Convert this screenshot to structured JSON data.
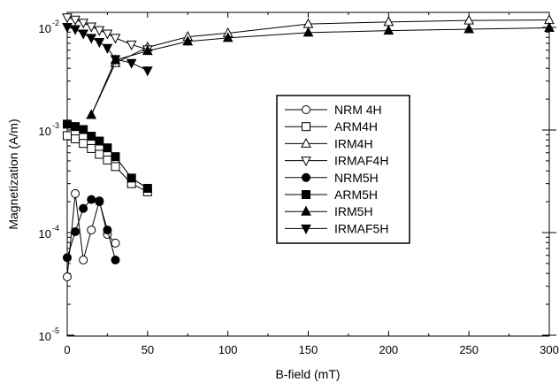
{
  "chart_data": {
    "type": "scatter",
    "title": "",
    "xlabel": "B-field (mT)",
    "ylabel": "Magnetization  (A/m)",
    "xlim": [
      0,
      300
    ],
    "ylim": [
      1e-05,
      0.01
    ],
    "y_scale": "log",
    "x_ticks": [
      0,
      50,
      100,
      150,
      200,
      250,
      300
    ],
    "y_ticks": [
      {
        "value": 0.01,
        "base": "10",
        "exp": "-2"
      },
      {
        "value": 0.001,
        "base": "10",
        "exp": "-3"
      },
      {
        "value": 0.0001,
        "base": "10",
        "exp": "-4"
      },
      {
        "value": 1e-05,
        "base": "10",
        "exp": "-5"
      }
    ],
    "grid": false,
    "legend_position": "center-right",
    "series": [
      {
        "name": "NRM 4H",
        "marker": "circle-open",
        "x": [
          0,
          5,
          10,
          15,
          20,
          25,
          30
        ],
        "y": [
          3.7e-05,
          0.00024,
          5.4e-05,
          0.000106,
          0.000204,
          9.6e-05,
          7.9e-05
        ]
      },
      {
        "name": "ARM4H",
        "marker": "square-open",
        "x": [
          0,
          5,
          10,
          15,
          20,
          25,
          30,
          40,
          50
        ],
        "y": [
          0.00088,
          0.00082,
          0.00074,
          0.00066,
          0.00058,
          0.00051,
          0.00044,
          0.0003,
          0.00025
        ]
      },
      {
        "name": "IRM4H",
        "marker": "triangle-up-open",
        "x": [
          15,
          30,
          50,
          75,
          100,
          150,
          200,
          250,
          300
        ],
        "y": [
          0.0014,
          0.0045,
          0.0064,
          0.0081,
          0.0088,
          0.0108,
          0.0113,
          0.0117,
          0.0118
        ]
      },
      {
        "name": "IRMAF4H",
        "marker": "triangle-down-open",
        "x": [
          0,
          5,
          10,
          15,
          20,
          25,
          30,
          40,
          50
        ],
        "y": [
          0.0125,
          0.0119,
          0.0111,
          0.0102,
          0.0094,
          0.0087,
          0.0079,
          0.0068,
          0.0061
        ]
      },
      {
        "name": "NRM5H",
        "marker": "circle-filled",
        "x": [
          0,
          5,
          10,
          15,
          20,
          25,
          30
        ],
        "y": [
          5.7e-05,
          0.000102,
          0.000172,
          0.00021,
          0.0002,
          0.000106,
          5.4e-05
        ]
      },
      {
        "name": "ARM5H",
        "marker": "square-filled",
        "x": [
          0,
          5,
          10,
          15,
          20,
          25,
          30,
          40,
          50
        ],
        "y": [
          0.00114,
          0.00108,
          0.00101,
          0.00087,
          0.00078,
          0.00067,
          0.00055,
          0.00034,
          0.00027
        ]
      },
      {
        "name": "IRM5H",
        "marker": "triangle-up-filled",
        "x": [
          15,
          30,
          50,
          75,
          100,
          150,
          200,
          250,
          300
        ],
        "y": [
          0.0014,
          0.0048,
          0.0059,
          0.0073,
          0.0079,
          0.0089,
          0.0093,
          0.0096,
          0.0099
        ]
      },
      {
        "name": "IRMAF5H",
        "marker": "triangle-down-filled",
        "x": [
          0,
          5,
          10,
          15,
          20,
          25,
          30,
          40,
          50
        ],
        "y": [
          0.0101,
          0.0096,
          0.0087,
          0.0079,
          0.0072,
          0.0063,
          0.0049,
          0.0045,
          0.0038
        ]
      }
    ]
  }
}
